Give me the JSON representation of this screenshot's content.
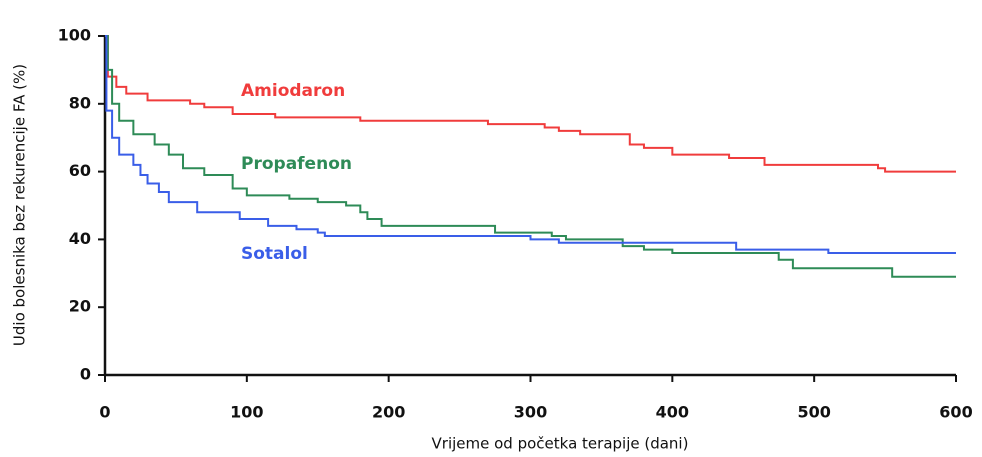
{
  "chart_data": {
    "type": "line",
    "step": true,
    "xlabel": "Vrijeme od početka terapije (dani)",
    "ylabel": "Udio bolesnika bez rekurencije FA (%)",
    "xlim": [
      0,
      600
    ],
    "xticks": [
      0,
      100,
      200,
      300,
      400,
      500,
      600
    ],
    "ylim": [
      0,
      100
    ],
    "yticks": [
      0,
      20,
      40,
      60,
      80,
      100
    ],
    "grid": false,
    "series": [
      {
        "name": "Amiodaron",
        "color": "#f03c3c",
        "x": [
          0,
          2,
          8,
          15,
          30,
          60,
          70,
          90,
          120,
          180,
          270,
          310,
          320,
          335,
          370,
          380,
          400,
          440,
          465,
          545,
          550,
          600
        ],
        "values": [
          100,
          88,
          85,
          83,
          81,
          80,
          79,
          77,
          76,
          75,
          74,
          73,
          72,
          71,
          68,
          67,
          65,
          64,
          62,
          61,
          60,
          60
        ]
      },
      {
        "name": "Propafenon",
        "color": "#2e8b57",
        "x": [
          0,
          2,
          5,
          10,
          20,
          35,
          45,
          55,
          70,
          90,
          100,
          130,
          150,
          170,
          180,
          185,
          195,
          270,
          275,
          315,
          325,
          365,
          380,
          400,
          475,
          485,
          555,
          600
        ],
        "values": [
          100,
          90,
          80,
          75,
          71,
          68,
          65,
          61,
          59,
          55,
          53,
          52,
          51,
          50,
          48,
          46,
          44,
          44,
          42,
          41,
          40,
          38,
          37,
          36,
          34,
          31.5,
          29,
          29
        ]
      },
      {
        "name": "Sotalol",
        "color": "#3a5ee8",
        "x": [
          0,
          1,
          5,
          10,
          20,
          25,
          30,
          38,
          45,
          65,
          95,
          115,
          135,
          150,
          155,
          300,
          320,
          445,
          510,
          600
        ],
        "values": [
          100,
          78,
          70,
          65,
          62,
          59,
          56.5,
          54,
          51,
          48,
          46,
          44,
          43,
          42,
          41,
          40,
          39,
          37,
          36,
          36
        ]
      }
    ]
  }
}
